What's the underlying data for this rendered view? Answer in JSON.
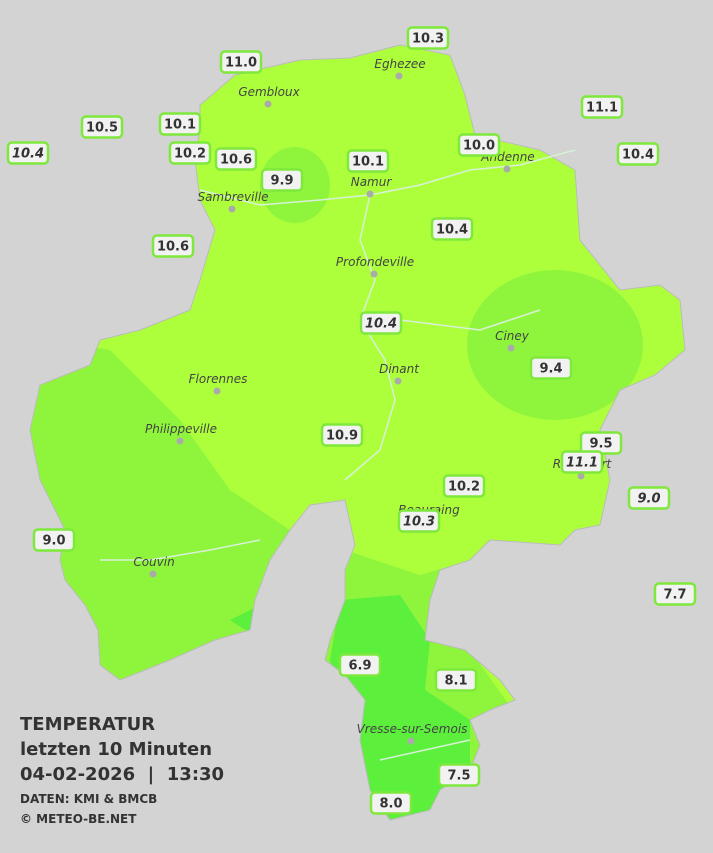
{
  "map": {
    "stations": [
      {
        "label": "10.3"
      },
      {
        "label": "11.0"
      },
      {
        "label": "10.5"
      },
      {
        "label": "10.1"
      },
      {
        "label": "11.1"
      },
      {
        "label": "10.4",
        "italic": true
      },
      {
        "label": "10.2"
      },
      {
        "label": "10.6"
      },
      {
        "label": "9.9"
      },
      {
        "label": "10.1"
      },
      {
        "label": "10.0"
      },
      {
        "label": "10.4"
      },
      {
        "label": "10.6"
      },
      {
        "label": "10.4"
      },
      {
        "label": "10.4",
        "italic": true
      },
      {
        "label": "9.4"
      },
      {
        "label": "10.9"
      },
      {
        "label": "9.5"
      },
      {
        "label": "11.1",
        "italic": true
      },
      {
        "label": "10.2"
      },
      {
        "label": "10.3",
        "italic": true
      },
      {
        "label": "9.0",
        "italic": true
      },
      {
        "label": "9.0"
      },
      {
        "label": "7.7"
      },
      {
        "label": "6.9"
      },
      {
        "label": "8.1"
      },
      {
        "label": "7.5"
      },
      {
        "label": "8.0"
      }
    ],
    "cities": [
      "Eghezee",
      "Gembloux",
      "Andenne",
      "Namur",
      "Sambreville",
      "Profondeville",
      "Ciney",
      "Dinant",
      "Florennes",
      "Philippeville",
      "Rochefort",
      "Beauraing",
      "Couvin",
      "Vresse-sur-Semois"
    ]
  },
  "legend": {
    "title": "TEMPERATUR",
    "period": "letzten 10 Minuten",
    "datetime": "04-02-2026  |  13:30",
    "source": "DATEN: KMI & BMCB",
    "copyright": "© METEO-BE.NET"
  }
}
